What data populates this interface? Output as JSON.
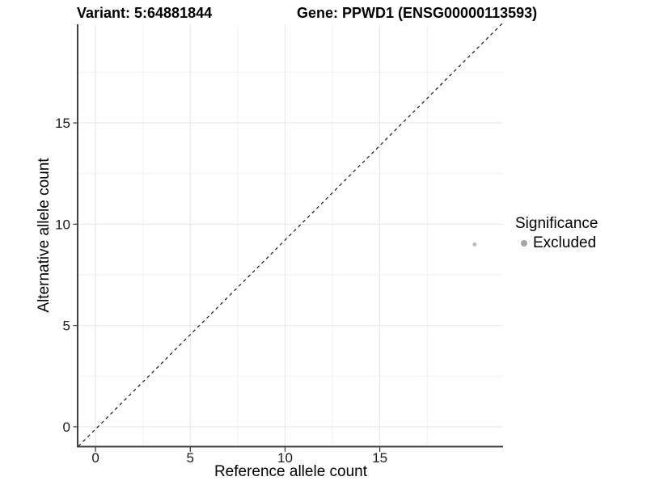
{
  "chart_data": {
    "type": "scatter",
    "title_left": "Variant: 5:64881844",
    "title_right": "Gene: PPWD1 (ENSG00000113593)",
    "xlabel": "Reference allele count",
    "ylabel": "Alternative allele count",
    "x_ticks": [
      0,
      5,
      10,
      15
    ],
    "y_ticks": [
      0,
      5,
      10,
      15
    ],
    "x_minor_ticks": [
      2.5,
      7.5,
      12.5,
      17.5
    ],
    "y_minor_ticks": [
      2.5,
      7.5,
      12.5,
      17.5
    ],
    "xlim": [
      -0.9,
      21.5
    ],
    "ylim": [
      -0.96,
      19.87
    ],
    "grid": "major+minor",
    "reference_line": {
      "type": "identity",
      "equation": "y = x",
      "linetype": "dashed",
      "color": "#141414"
    },
    "series": [
      {
        "name": "Excluded",
        "color": "#bdbdbd",
        "points": [
          {
            "x": 20,
            "y": 9
          }
        ]
      }
    ],
    "legend": {
      "title": "Significance",
      "position": "right",
      "items": [
        {
          "label": "Excluded",
          "color": "#a6a6a6",
          "marker": "circle"
        }
      ]
    },
    "colors": {
      "background": "#ffffff",
      "axis_line": "#404040",
      "tick_mark": "#333333",
      "grid_major": "#e6e6e6",
      "grid_minor": "#f2f2f2",
      "text": "#1a1a1a"
    }
  }
}
